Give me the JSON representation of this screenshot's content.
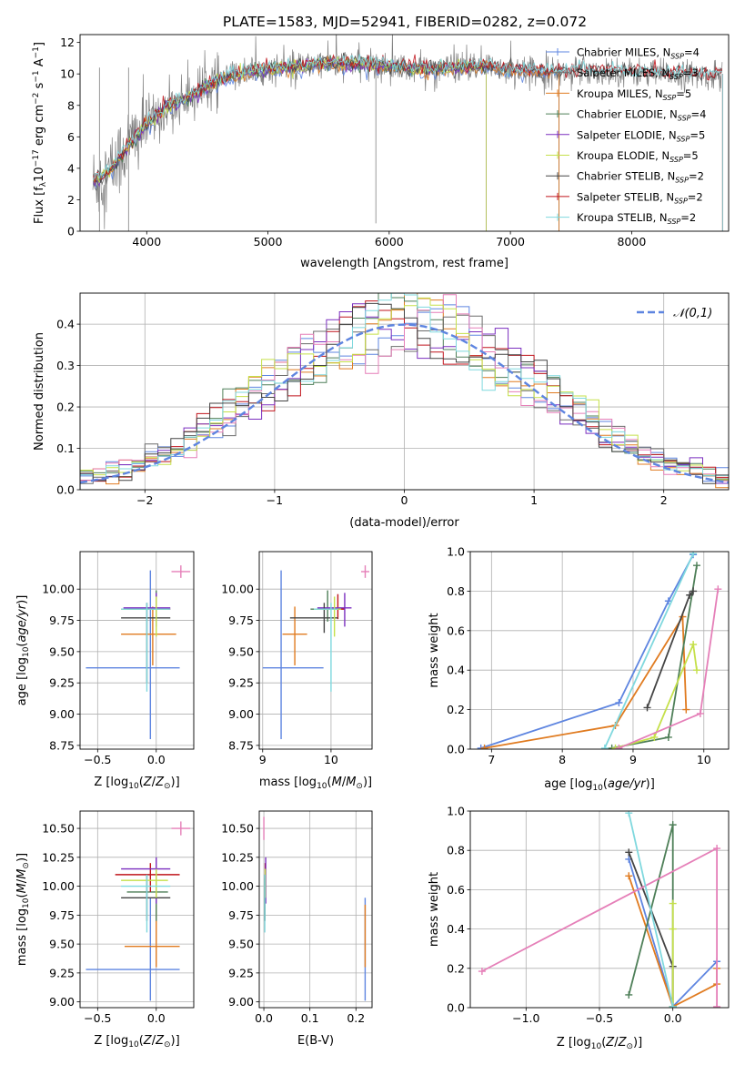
{
  "figure": {
    "title": "PLATE=1583, MJD=52941, FIBERID=0282, z=0.072"
  },
  "chart_data": [
    {
      "id": "spectrum",
      "type": "line",
      "title": "PLATE=1583, MJD=52941, FIBERID=0282, z=0.072",
      "xlabel": "wavelength [Angstrom, rest frame]",
      "ylabel": "Flux [f_λ10^-17 erg cm^-2 s^-1 A^-1]",
      "xlim": [
        3450,
        8800
      ],
      "ylim": [
        0,
        12.5
      ],
      "xticks": [
        4000,
        5000,
        6000,
        7000,
        8000
      ],
      "yticks": [
        0,
        2,
        4,
        6,
        8,
        10,
        12
      ],
      "grid": false,
      "legend_position": "right",
      "continuum_x": [
        3550,
        3700,
        3850,
        4000,
        4150,
        4300,
        4450,
        4600,
        4800,
        5000,
        5200,
        5400,
        5600,
        5800,
        6000,
        6200,
        6400,
        6600,
        6800,
        7000,
        7200,
        7400,
        7600,
        7800,
        8000,
        8200,
        8400,
        8600
      ],
      "continuum_y": [
        3.0,
        3.8,
        5.5,
        6.8,
        7.8,
        8.3,
        9.0,
        9.6,
        10.1,
        10.3,
        10.4,
        10.6,
        10.7,
        10.6,
        10.5,
        10.4,
        10.3,
        10.4,
        10.5,
        10.3,
        10.2,
        10.1,
        10.2,
        10.2,
        10.1,
        10.0,
        10.0,
        9.9
      ],
      "series": [
        {
          "name": "Chabrier MILES",
          "nssp": "4",
          "color": "#5e85e0",
          "end_x": 7400
        },
        {
          "name": "Salpeter MILES",
          "nssp": "3",
          "color": "#6c6c6c",
          "end_x": 7400
        },
        {
          "name": "Kroupa MILES",
          "nssp": "5",
          "color": "#e07b20",
          "end_x": 7400
        },
        {
          "name": "Chabrier ELODIE",
          "nssp": "4",
          "color": "#4e7f58",
          "end_x": 6800
        },
        {
          "name": "Salpeter ELODIE",
          "nssp": "5",
          "color": "#7b2fbf",
          "end_x": 6800
        },
        {
          "name": "Kroupa ELODIE",
          "nssp": "5",
          "color": "#c5e04a",
          "end_x": 6800
        },
        {
          "name": "Chabrier STELIB",
          "nssp": "2",
          "color": "#444444",
          "end_x": 8750
        },
        {
          "name": "Salpeter STELIB",
          "nssp": "2",
          "color": "#c0141c",
          "end_x": 8750
        },
        {
          "name": "Kroupa STELIB",
          "nssp": "2",
          "color": "#7fd8de",
          "end_x": 8750
        }
      ]
    },
    {
      "id": "residuals",
      "type": "line",
      "xlabel": "(data-model)/error",
      "ylabel": "Normed distribution",
      "xlim": [
        -2.5,
        2.5
      ],
      "ylim": [
        0,
        0.475
      ],
      "xticks": [
        -2,
        -1,
        0,
        1,
        2
      ],
      "yticks": [
        0.0,
        0.1,
        0.2,
        0.3,
        0.4
      ],
      "grid": true,
      "legend": "𝒩(0,1)",
      "legend_position": "top-right",
      "gaussian_color": "#5e85e0",
      "bin_width": 0.1,
      "histogram_colors": [
        "#5e85e0",
        "#e07b20",
        "#4e7f58",
        "#c0141c",
        "#7b2fbf",
        "#6c6c6c",
        "#e57fb8",
        "#c5e04a",
        "#7fd8de",
        "#444444"
      ]
    },
    {
      "id": "age_vs_Z",
      "type": "scatter",
      "xlabel": "Z [log10(Z/Z⊙)]",
      "ylabel": "age [log10(age/yr)]",
      "xlim": [
        -0.65,
        0.32
      ],
      "ylim": [
        8.72,
        10.3
      ],
      "xticks": [
        -0.5,
        0.0
      ],
      "xticklabels": [
        "−0.5",
        "0.0"
      ],
      "yticks": [
        8.75,
        9.0,
        9.25,
        9.5,
        9.75,
        10.0
      ],
      "yticklabels": [
        "8.75",
        "9.00",
        "9.25",
        "9.50",
        "9.75",
        "10.00"
      ],
      "grid": true,
      "points": [
        {
          "x": -0.05,
          "y": 9.37,
          "xerr": [
            0.55,
            0.25
          ],
          "yerr": [
            0.57,
            0.78
          ],
          "color": "#5e85e0"
        },
        {
          "x": -0.03,
          "y": 9.64,
          "xerr": [
            0.27,
            0.2
          ],
          "yerr": [
            0.25,
            0.22
          ],
          "color": "#e07b20"
        },
        {
          "x": 0.0,
          "y": 9.84,
          "xerr": [
            0.25,
            0.1
          ],
          "yerr": [
            0.1,
            0.15
          ],
          "color": "#4e7f58"
        },
        {
          "x": 0.0,
          "y": 9.84,
          "xerr": [
            0.25,
            0.12
          ],
          "yerr": [
            0.08,
            0.12
          ],
          "color": "#c0141c"
        },
        {
          "x": 0.0,
          "y": 9.85,
          "xerr": [
            0.28,
            0.12
          ],
          "yerr": [
            0.15,
            0.12
          ],
          "color": "#7b2fbf"
        },
        {
          "x": -0.08,
          "y": 9.77,
          "xerr": [
            0.22,
            0.2
          ],
          "yerr": [
            0.52,
            0.12
          ],
          "color": "#444444"
        },
        {
          "x": 0.0,
          "y": 9.84,
          "xerr": [
            0.3,
            0.1
          ],
          "yerr": [
            0.22,
            0.1
          ],
          "color": "#c5e04a"
        },
        {
          "x": -0.08,
          "y": 9.84,
          "xerr": [
            0.22,
            0.2
          ],
          "yerr": [
            0.66,
            0.05
          ],
          "color": "#7fd8de"
        },
        {
          "x": 0.21,
          "y": 10.14,
          "xerr": [
            0.08,
            0.08
          ],
          "yerr": [
            0.05,
            0.05
          ],
          "color": "#e57fb8"
        }
      ]
    },
    {
      "id": "age_vs_mass",
      "type": "scatter",
      "xlabel": "mass [log10(M/M⊙)]",
      "ylabel": "",
      "xlim": [
        8.95,
        10.6
      ],
      "ylim": [
        8.72,
        10.3
      ],
      "xticks": [
        9,
        10
      ],
      "xticklabels": [
        "9",
        "10"
      ],
      "yticks": [
        8.75,
        9.0,
        9.25,
        9.5,
        9.75,
        10.0
      ],
      "yticklabels": [
        "8.75",
        "9.00",
        "9.25",
        "9.50",
        "9.75",
        "10.00"
      ],
      "grid": true,
      "points": [
        {
          "x": 9.27,
          "y": 9.37,
          "xerr": [
            0.27,
            0.62
          ],
          "yerr": [
            0.57,
            0.78
          ],
          "color": "#5e85e0"
        },
        {
          "x": 9.47,
          "y": 9.64,
          "xerr": [
            0.18,
            0.18
          ],
          "yerr": [
            0.25,
            0.22
          ],
          "color": "#e07b20"
        },
        {
          "x": 9.95,
          "y": 9.84,
          "xerr": [
            0.25,
            0.12
          ],
          "yerr": [
            0.1,
            0.15
          ],
          "color": "#4e7f58"
        },
        {
          "x": 10.1,
          "y": 9.84,
          "xerr": [
            0.28,
            0.1
          ],
          "yerr": [
            0.08,
            0.12
          ],
          "color": "#c0141c"
        },
        {
          "x": 10.2,
          "y": 9.85,
          "xerr": [
            0.4,
            0.1
          ],
          "yerr": [
            0.15,
            0.12
          ],
          "color": "#7b2fbf"
        },
        {
          "x": 9.9,
          "y": 9.77,
          "xerr": [
            0.5,
            0.2
          ],
          "yerr": [
            0.12,
            0.12
          ],
          "color": "#444444"
        },
        {
          "x": 10.05,
          "y": 9.84,
          "xerr": [
            0.3,
            0.1
          ],
          "yerr": [
            0.22,
            0.1
          ],
          "color": "#c5e04a"
        },
        {
          "x": 10.0,
          "y": 9.84,
          "xerr": [
            0.25,
            0.1
          ],
          "yerr": [
            0.66,
            0.05
          ],
          "color": "#7fd8de"
        },
        {
          "x": 10.5,
          "y": 10.14,
          "xerr": [
            0.06,
            0.06
          ],
          "yerr": [
            0.05,
            0.05
          ],
          "color": "#e57fb8"
        }
      ]
    },
    {
      "id": "weight_vs_age",
      "type": "line",
      "xlabel": "age [log10(age/yr)]",
      "ylabel": "mass weight",
      "xlim": [
        6.7,
        10.35
      ],
      "ylim": [
        0,
        1
      ],
      "xticks": [
        7,
        8,
        9,
        10
      ],
      "xticklabels": [
        "7",
        "8",
        "9",
        "10"
      ],
      "yticks": [
        0.0,
        0.2,
        0.4,
        0.6,
        0.8,
        1.0
      ],
      "yticklabels": [
        "0.0",
        "0.2",
        "0.4",
        "0.6",
        "0.8",
        "1.0"
      ],
      "grid": true,
      "series": [
        {
          "color": "#5e85e0",
          "x": [
            6.85,
            8.8,
            9.5,
            9.85
          ],
          "y": [
            0.005,
            0.235,
            0.75,
            0.985
          ]
        },
        {
          "color": "#e07b20",
          "x": [
            6.9,
            8.75,
            9.7,
            9.75
          ],
          "y": [
            0.005,
            0.12,
            0.67,
            0.2
          ]
        },
        {
          "color": "#4e7f58",
          "x": [
            8.7,
            9.5,
            9.9
          ],
          "y": [
            0.005,
            0.06,
            0.93
          ]
        },
        {
          "color": "#444444",
          "x": [
            9.2,
            9.8,
            9.85
          ],
          "y": [
            0.21,
            0.78,
            0.8
          ]
        },
        {
          "color": "#c5e04a",
          "x": [
            8.75,
            9.3,
            9.85,
            9.9
          ],
          "y": [
            0.005,
            0.06,
            0.53,
            0.4
          ]
        },
        {
          "color": "#e57fb8",
          "x": [
            8.8,
            9.95,
            10.2
          ],
          "y": [
            0.005,
            0.18,
            0.81
          ]
        },
        {
          "color": "#7fd8de",
          "x": [
            8.6,
            9.85
          ],
          "y": [
            0.005,
            0.99
          ]
        }
      ]
    },
    {
      "id": "mass_vs_Z",
      "type": "scatter",
      "xlabel": "Z [log10(Z/Z⊙)]",
      "ylabel": "mass [log10(M/M⊙)]",
      "xlim": [
        -0.65,
        0.32
      ],
      "ylim": [
        8.95,
        10.65
      ],
      "xticks": [
        -0.5,
        0.0
      ],
      "xticklabels": [
        "−0.5",
        "0.0"
      ],
      "yticks": [
        9.0,
        9.25,
        9.5,
        9.75,
        10.0,
        10.25,
        10.5
      ],
      "yticklabels": [
        "9.00",
        "9.25",
        "9.50",
        "9.75",
        "10.00",
        "10.25",
        "10.50"
      ],
      "grid": true,
      "points": [
        {
          "x": -0.05,
          "y": 9.28,
          "xerr": [
            0.55,
            0.25
          ],
          "yerr": [
            0.27,
            0.62
          ],
          "color": "#5e85e0"
        },
        {
          "x": 0.0,
          "y": 9.48,
          "xerr": [
            0.27,
            0.2
          ],
          "yerr": [
            0.18,
            0.36
          ],
          "color": "#e07b20"
        },
        {
          "x": 0.0,
          "y": 9.95,
          "xerr": [
            0.25,
            0.1
          ],
          "yerr": [
            0.25,
            0.12
          ],
          "color": "#4e7f58"
        },
        {
          "x": -0.05,
          "y": 10.1,
          "xerr": [
            0.3,
            0.25
          ],
          "yerr": [
            0.15,
            0.1
          ],
          "color": "#c0141c"
        },
        {
          "x": 0.0,
          "y": 10.15,
          "xerr": [
            0.3,
            0.12
          ],
          "yerr": [
            0.3,
            0.1
          ],
          "color": "#7b2fbf"
        },
        {
          "x": -0.08,
          "y": 9.9,
          "xerr": [
            0.22,
            0.2
          ],
          "yerr": [
            0.2,
            0.2
          ],
          "color": "#444444"
        },
        {
          "x": 0.0,
          "y": 10.05,
          "xerr": [
            0.3,
            0.1
          ],
          "yerr": [
            0.15,
            0.1
          ],
          "color": "#c5e04a"
        },
        {
          "x": -0.08,
          "y": 10.0,
          "xerr": [
            0.22,
            0.2
          ],
          "yerr": [
            0.4,
            0.1
          ],
          "color": "#7fd8de"
        },
        {
          "x": 0.21,
          "y": 10.5,
          "xerr": [
            0.08,
            0.08
          ],
          "yerr": [
            0.06,
            0.06
          ],
          "color": "#e57fb8"
        }
      ]
    },
    {
      "id": "mass_vs_ebv",
      "type": "scatter",
      "xlabel": "E(B-V)",
      "ylabel": "",
      "xlim": [
        -0.01,
        0.235
      ],
      "ylim": [
        8.95,
        10.65
      ],
      "xticks": [
        0.0,
        0.1,
        0.2
      ],
      "xticklabels": [
        "0.0",
        "0.1",
        "0.2"
      ],
      "yticks": [
        9.0,
        9.25,
        9.5,
        9.75,
        10.0,
        10.25,
        10.5
      ],
      "yticklabels": [
        "9.00",
        "9.25",
        "9.50",
        "9.75",
        "10.00",
        "10.25",
        "10.50"
      ],
      "grid": true,
      "points": [
        {
          "x": 0.22,
          "y": 9.28,
          "xerr": [
            0,
            0
          ],
          "yerr": [
            0.27,
            0.62
          ],
          "color": "#5e85e0"
        },
        {
          "x": 0.22,
          "y": 9.48,
          "xerr": [
            0,
            0
          ],
          "yerr": [
            0.18,
            0.36
          ],
          "color": "#e07b20"
        },
        {
          "x": 0.002,
          "y": 9.95,
          "xerr": [
            0,
            0
          ],
          "yerr": [
            0.25,
            0.12
          ],
          "color": "#4e7f58"
        },
        {
          "x": 0.003,
          "y": 10.1,
          "xerr": [
            0,
            0
          ],
          "yerr": [
            0.15,
            0.1
          ],
          "color": "#c0141c"
        },
        {
          "x": 0.004,
          "y": 10.15,
          "xerr": [
            0,
            0
          ],
          "yerr": [
            0.3,
            0.1
          ],
          "color": "#7b2fbf"
        },
        {
          "x": 0.002,
          "y": 9.9,
          "xerr": [
            0,
            0
          ],
          "yerr": [
            0.2,
            0.2
          ],
          "color": "#444444"
        },
        {
          "x": 0.003,
          "y": 10.05,
          "xerr": [
            0,
            0
          ],
          "yerr": [
            0.15,
            0.1
          ],
          "color": "#c5e04a"
        },
        {
          "x": 0.002,
          "y": 10.0,
          "xerr": [
            0,
            0
          ],
          "yerr": [
            0.4,
            0.1
          ],
          "color": "#7fd8de"
        },
        {
          "x": 0.0,
          "y": 10.5,
          "xerr": [
            0,
            0
          ],
          "yerr": [
            0.1,
            0.1
          ],
          "color": "#e57fb8"
        }
      ]
    },
    {
      "id": "weight_vs_Z",
      "type": "line",
      "xlabel": "Z [log10(Z/Z⊙)]",
      "ylabel": "mass weight",
      "xlim": [
        -1.38,
        0.38
      ],
      "ylim": [
        0,
        1
      ],
      "xticks": [
        -1.0,
        -0.5,
        0.0
      ],
      "xticklabels": [
        "−1.0",
        "−0.5",
        "0.0"
      ],
      "yticks": [
        0.0,
        0.2,
        0.4,
        0.6,
        0.8,
        1.0
      ],
      "yticklabels": [
        "0.0",
        "0.2",
        "0.4",
        "0.6",
        "0.8",
        "1.0"
      ],
      "grid": true,
      "series": [
        {
          "color": "#5e85e0",
          "x": [
            -0.3,
            0.0,
            0.3
          ],
          "y": [
            0.755,
            0.005,
            0.235
          ]
        },
        {
          "color": "#e07b20",
          "x": [
            -0.3,
            0.0,
            0.3,
            0.3
          ],
          "y": [
            0.67,
            0.005,
            0.12,
            0.2
          ]
        },
        {
          "color": "#4e7f58",
          "x": [
            -0.3,
            0.0,
            0.0
          ],
          "y": [
            0.065,
            0.93,
            0.005
          ]
        },
        {
          "color": "#444444",
          "x": [
            -0.3,
            0.0,
            0.0
          ],
          "y": [
            0.79,
            0.21,
            0.005
          ]
        },
        {
          "color": "#c5e04a",
          "x": [
            0.0,
            0.0,
            0.0
          ],
          "y": [
            0.53,
            0.4,
            0.005
          ]
        },
        {
          "color": "#e57fb8",
          "x": [
            -1.3,
            0.3,
            0.3
          ],
          "y": [
            0.185,
            0.81,
            0.005
          ]
        },
        {
          "color": "#7fd8de",
          "x": [
            -0.3,
            0.0
          ],
          "y": [
            0.99,
            0.005
          ]
        }
      ]
    }
  ]
}
